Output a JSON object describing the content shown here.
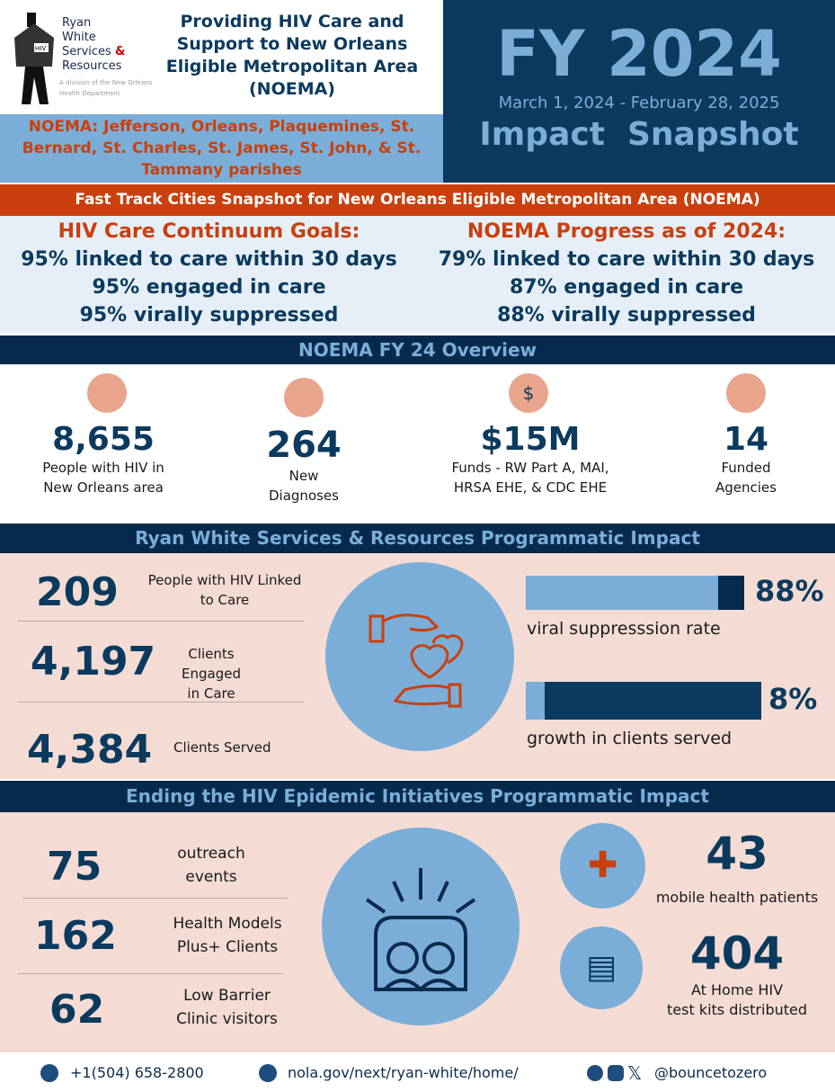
{
  "header": {
    "logo": {
      "line1": "Ryan",
      "line2": "White",
      "line3": "Services",
      "amp": "&",
      "line4": "Resources",
      "sub1": "A division of the New Orleans",
      "sub2": "Health Department"
    },
    "title": "Providing HIV Care and Support to New Orleans Eligible Metropolitan Area (NOEMA)",
    "parishes": "NOEMA: Jefferson, Orleans, Plaquemines, St. Bernard, St. Charles, St. James, St. John, & St. Tammany parishes",
    "fy": "FY 2024",
    "dates": "March 1, 2024 - February 28, 2025",
    "snapshot": "Impact  Snapshot"
  },
  "fast_track": "Fast Track Cities Snapshot for New Orleans Eligible Metropolitan Area (NOEMA)",
  "goals": {
    "title": "HIV Care Continuum Goals:",
    "items": [
      "95% linked to care within 30 days",
      "95% engaged in care",
      "95% virally suppressed"
    ]
  },
  "progress": {
    "title": "NOEMA Progress as of 2024:",
    "items": [
      "79% linked to care within 30 days",
      "87% engaged in care",
      "88% virally suppressed"
    ]
  },
  "overview": {
    "title": "NOEMA FY 24 Overview",
    "stats": [
      {
        "value": "8,655",
        "label1": "People with HIV in",
        "label2": "New Orleans area",
        "icon": "head-heart-icon"
      },
      {
        "value": "264",
        "label1": "New",
        "label2": "Diagnoses",
        "icon": "person-scan-icon"
      },
      {
        "value": "$15M",
        "label1": "Funds - RW Part A, MAI,",
        "label2": "HRSA EHE, & CDC EHE",
        "icon": "dollar-icon"
      },
      {
        "value": "14",
        "label1": "Funded",
        "label2": "Agencies",
        "icon": "person-scan-icon"
      }
    ]
  },
  "rw": {
    "title": "Ryan White Services & Resources Programmatic Impact",
    "stats": [
      {
        "value": "209",
        "label1": "People with HIV Linked",
        "label2": "to Care"
      },
      {
        "value": "4,197",
        "label1": "Clients Engaged",
        "label2": "in Care"
      },
      {
        "value": "4,384",
        "label1": "Clients Served",
        "label2": ""
      }
    ],
    "bars": [
      {
        "pct": "88%",
        "fraction": 0.88,
        "label": "viral suppresssion rate"
      },
      {
        "pct": "8%",
        "fraction": 0.08,
        "label": "growth in clients served"
      }
    ]
  },
  "ehe": {
    "title": "Ending the HIV Epidemic Initiatives Programmatic Impact",
    "stats": [
      {
        "value": "75",
        "label1": "outreach",
        "label2": "events"
      },
      {
        "value": "162",
        "label1": "Health Models",
        "label2": "Plus+ Clients"
      },
      {
        "value": "62",
        "label1": "Low Barrier",
        "label2": "Clinic visitors"
      }
    ],
    "right": [
      {
        "value": "43",
        "label1": "mobile health patients",
        "label2": ""
      },
      {
        "value": "404",
        "label1": "At Home HIV",
        "label2": "test kits distributed"
      }
    ]
  },
  "footer": {
    "phone": "+1(504) 658-2800",
    "web": "nola.gov/next/ryan-white/home/",
    "social": "@bouncetozero"
  }
}
